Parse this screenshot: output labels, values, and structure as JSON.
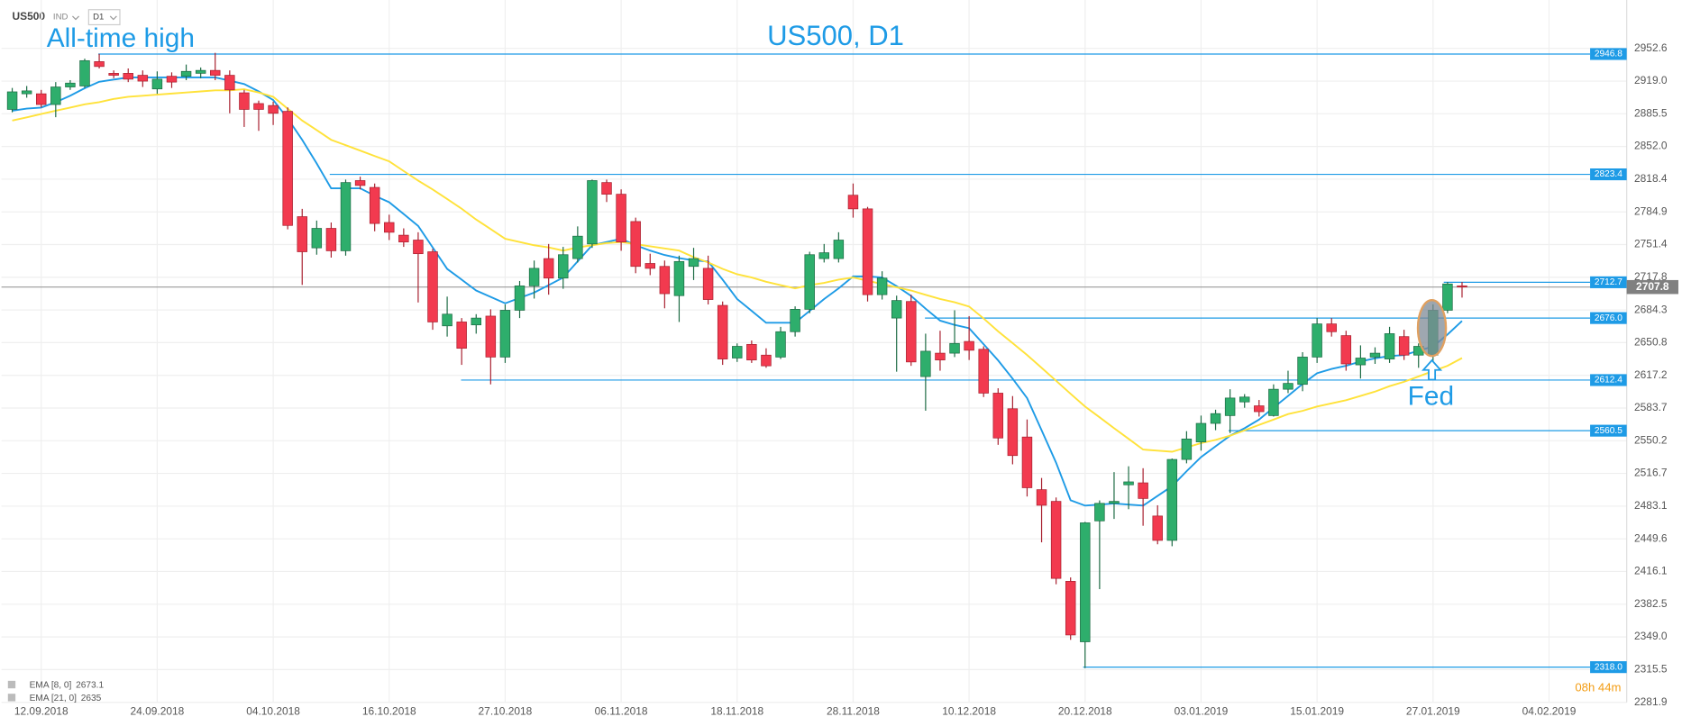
{
  "header": {
    "symbol": "US500",
    "market": "IND",
    "timeframe": "D1"
  },
  "chart_data": {
    "type": "candlestick",
    "title": "US500, D1",
    "categories": [
      null,
      null,
      "12.09.2018",
      null,
      null,
      null,
      null,
      null,
      null,
      null,
      "24.09.2018",
      null,
      null,
      null,
      null,
      null,
      null,
      null,
      "04.10.2018",
      null,
      null,
      null,
      null,
      null,
      null,
      null,
      "16.10.2018",
      null,
      null,
      null,
      null,
      null,
      null,
      null,
      "27.10.2018",
      null,
      null,
      null,
      null,
      null,
      null,
      null,
      "06.11.2018",
      null,
      null,
      null,
      null,
      null,
      null,
      null,
      "18.11.2018",
      null,
      null,
      null,
      null,
      null,
      null,
      null,
      "28.11.2018",
      null,
      null,
      null,
      null,
      null,
      null,
      null,
      "10.12.2018",
      null,
      null,
      null,
      null,
      null,
      null,
      null,
      "20.12.2018",
      null,
      null,
      null,
      null,
      null,
      null,
      null,
      "03.01.2019",
      null,
      null,
      null,
      null,
      null,
      null,
      null,
      "15.01.2019",
      null,
      null,
      null,
      null,
      null,
      null,
      null,
      "27.01.2019",
      null,
      null,
      null,
      null,
      null,
      null,
      null,
      "04.02.2019"
    ],
    "open": [
      2890,
      2906,
      2906,
      2895,
      2913,
      2914,
      2939,
      2927,
      2927,
      2925,
      2911,
      2924,
      2924,
      2927,
      2930,
      2925,
      2907,
      2896,
      2894,
      2888,
      2780,
      2748,
      2768,
      2745,
      2817,
      2810,
      2774,
      2761,
      2756,
      2744,
      2668,
      2672,
      2669,
      2678,
      2636,
      2684,
      2709,
      2737,
      2717,
      2737,
      2752,
      2815,
      2803,
      2775,
      2732,
      2729,
      2699,
      2729,
      2727,
      2689,
      2635,
      2649,
      2638,
      2636,
      2662,
      2685,
      2737,
      2737,
      2802,
      2788,
      2700,
      2676,
      2693,
      2616,
      2640,
      2640,
      2652,
      2644,
      2599,
      2583,
      2554,
      2500,
      2488,
      2406,
      2344,
      2468,
      2486,
      2505,
      2507,
      2473,
      2448,
      2531,
      2549,
      2568,
      2576,
      2590,
      2586,
      2576,
      2603,
      2608,
      2636,
      2670,
      2658,
      2628,
      2636,
      2634,
      2657,
      2638,
      2638,
      2684,
      2709,
      null,
      null,
      null,
      null,
      null,
      null
    ],
    "high": [
      2912,
      2914,
      2910,
      2918,
      2920,
      2942,
      2947,
      2930,
      2932,
      2930,
      2929,
      2928,
      2936,
      2933,
      2948,
      2930,
      2910,
      2899,
      2898,
      2892,
      2788,
      2776,
      2774,
      2818,
      2821,
      2814,
      2782,
      2768,
      2764,
      2747,
      2698,
      2676,
      2680,
      2685,
      2690,
      2714,
      2735,
      2752,
      2749,
      2770,
      2818,
      2818,
      2808,
      2779,
      2742,
      2735,
      2740,
      2748,
      2740,
      2693,
      2650,
      2653,
      2645,
      2667,
      2688,
      2744,
      2752,
      2764,
      2814,
      2790,
      2724,
      2699,
      2700,
      2660,
      2663,
      2684,
      2678,
      2647,
      2604,
      2596,
      2572,
      2512,
      2492,
      2410,
      2467,
      2489,
      2518,
      2524,
      2522,
      2484,
      2532,
      2560,
      2576,
      2582,
      2603,
      2598,
      2592,
      2608,
      2622,
      2641,
      2676,
      2676,
      2663,
      2648,
      2646,
      2667,
      2664,
      2650,
      2690,
      2713,
      2713,
      null,
      null,
      null,
      null,
      null,
      null
    ],
    "low": [
      2887,
      2902,
      2892,
      2882,
      2910,
      2912,
      2932,
      2922,
      2918,
      2913,
      2906,
      2912,
      2920,
      2922,
      2920,
      2886,
      2872,
      2868,
      2874,
      2767,
      2710,
      2741,
      2738,
      2740,
      2808,
      2765,
      2756,
      2749,
      2692,
      2664,
      2657,
      2628,
      2660,
      2608,
      2630,
      2676,
      2696,
      2700,
      2706,
      2733,
      2748,
      2795,
      2745,
      2722,
      2720,
      2686,
      2672,
      2715,
      2690,
      2628,
      2631,
      2630,
      2625,
      2634,
      2657,
      2681,
      2733,
      2733,
      2779,
      2693,
      2695,
      2621,
      2627,
      2581,
      2622,
      2636,
      2633,
      2595,
      2546,
      2526,
      2493,
      2446,
      2403,
      2346,
      2317,
      2398,
      2470,
      2480,
      2463,
      2444,
      2442,
      2527,
      2540,
      2561,
      2558,
      2584,
      2575,
      2575,
      2599,
      2601,
      2630,
      2657,
      2622,
      2614,
      2629,
      2630,
      2633,
      2625,
      2631,
      2681,
      2697,
      null,
      null,
      null,
      null,
      null,
      null
    ],
    "close": [
      2908,
      2909,
      2895,
      2913,
      2917,
      2940,
      2934,
      2925,
      2921,
      2919,
      2921,
      2918,
      2929,
      2930,
      2925,
      2910,
      2890,
      2890,
      2886,
      2771,
      2744,
      2768,
      2745,
      2815,
      2812,
      2773,
      2764,
      2754,
      2742,
      2672,
      2680,
      2645,
      2676,
      2636,
      2684,
      2709,
      2727,
      2717,
      2741,
      2760,
      2817,
      2803,
      2754,
      2729,
      2727,
      2701,
      2734,
      2737,
      2695,
      2634,
      2647,
      2633,
      2627,
      2662,
      2685,
      2741,
      2743,
      2756,
      2788,
      2700,
      2717,
      2694,
      2631,
      2642,
      2633,
      2650,
      2643,
      2599,
      2553,
      2535,
      2502,
      2484,
      2409,
      2351,
      2466,
      2486,
      2488,
      2508,
      2491,
      2448,
      2531,
      2552,
      2568,
      2578,
      2594,
      2595,
      2580,
      2603,
      2609,
      2636,
      2670,
      2662,
      2629,
      2635,
      2640,
      2660,
      2638,
      2647,
      2684,
      2711,
      2707.8,
      null,
      null,
      null,
      null,
      null,
      null
    ],
    "up_color": "#2eae6c",
    "down_color": "#f23a4f",
    "series": [
      {
        "name": "EMA [8, 0]",
        "color": "#1e9be6",
        "values": [
          2888.6,
          2890.8,
          2891.9,
          2897.4,
          2904.0,
          2911.7,
          2918.4,
          2920.6,
          2922.8,
          2922.8,
          2922.8,
          2922.8,
          2922.8,
          2922.8,
          2922.8,
          2919.5,
          2916.1,
          2908.4,
          2899.6,
          2880.8,
          2858.8,
          2834.5,
          2809.1,
          2809.1,
          2809.1,
          2801.4,
          2794.8,
          2782.7,
          2770.5,
          2748.5,
          2726.4,
          2715.4,
          2704.3,
          2697.7,
          2691.1,
          2696.6,
          2702.1,
          2709.8,
          2717.6,
          2734.1,
          2750.7,
          2754.0,
          2757.3,
          2750.7,
          2745.2,
          2740.7,
          2737.5,
          2735.2,
          2734.1,
          2715.4,
          2695.5,
          2683.4,
          2671.2,
          2671.2,
          2671.2,
          2683.4,
          2695.5,
          2706.5,
          2718.7,
          2718.7,
          2717.6,
          2708.7,
          2698.8,
          2685.6,
          2673.4,
          2669.0,
          2665.7,
          2649.2,
          2632.6,
          2613.9,
          2594.0,
          2560.9,
          2527.8,
          2489.2,
          2483.7,
          2484.8,
          2485.9,
          2484.8,
          2483.7,
          2493.6,
          2503.6,
          2519.0,
          2533.4,
          2544.4,
          2555.4,
          2563.1,
          2571.9,
          2584.1,
          2596.2,
          2608.4,
          2619.4,
          2623.8,
          2627.1,
          2631.5,
          2634.8,
          2637.0,
          2638.1,
          2642.5,
          2646.9,
          2659.1,
          2673.1,
          null,
          null,
          null,
          null,
          null,
          null
        ]
      },
      {
        "name": "EMA [21, 0]",
        "color": "#ffe23a",
        "values": [
          2878.6,
          2881.9,
          2885.3,
          2888.6,
          2891.9,
          2895.2,
          2897.4,
          2900.7,
          2902.9,
          2904.0,
          2905.1,
          2906.2,
          2907.3,
          2908.4,
          2909.5,
          2909.5,
          2910.6,
          2907.3,
          2902.9,
          2890.8,
          2878.6,
          2868.7,
          2858.8,
          2853.3,
          2847.8,
          2842.2,
          2836.7,
          2826.8,
          2816.9,
          2808.0,
          2798.1,
          2788.1,
          2777.1,
          2767.2,
          2757.3,
          2754.0,
          2750.7,
          2748.5,
          2745.2,
          2748.5,
          2750.7,
          2752.9,
          2754.0,
          2751.8,
          2749.6,
          2747.4,
          2745.2,
          2738.5,
          2733.0,
          2726.4,
          2720.9,
          2717.6,
          2713.2,
          2709.8,
          2706.5,
          2709.8,
          2712.1,
          2715.4,
          2717.6,
          2714.3,
          2710.9,
          2707.6,
          2704.3,
          2699.9,
          2695.5,
          2692.2,
          2687.8,
          2675.6,
          2662.4,
          2650.3,
          2638.1,
          2624.9,
          2611.7,
          2598.4,
          2585.2,
          2574.2,
          2563.1,
          2552.1,
          2541.1,
          2540.0,
          2538.9,
          2543.3,
          2547.7,
          2551.0,
          2555.4,
          2560.9,
          2566.4,
          2571.9,
          2577.5,
          2580.8,
          2585.2,
          2588.5,
          2591.8,
          2596.2,
          2600.6,
          2606.2,
          2610.6,
          2616.1,
          2621.6,
          2627.1,
          2635.0,
          null,
          null,
          null,
          null,
          null,
          null
        ]
      }
    ],
    "ylim": [
      2281.9,
      3002.2
    ],
    "yticks": [
      2952.6,
      {
        "value": 2919,
        "label": "2919.0"
      },
      2885.5,
      {
        "value": 2852,
        "label": "2852.0"
      },
      2818.4,
      2784.9,
      2751.4,
      2717.8,
      2684.3,
      2650.8,
      2617.2,
      2583.7,
      2550.2,
      2516.7,
      2483.1,
      2449.6,
      2416.1,
      2382.5,
      {
        "value": 2349,
        "label": "2349.0"
      },
      2315.5,
      2281.9
    ],
    "grid": true,
    "levels": [
      2946.8,
      2823.4,
      2712.7,
      {
        "value": 2676,
        "label": "2676.0"
      },
      2612.4,
      2560.5,
      {
        "value": 2318,
        "label": "2318.0"
      }
    ],
    "level_color": "#1e9be6",
    "last_price": 2707.8,
    "annotations": [
      "All-time high",
      "Fed"
    ]
  },
  "timer": "08h 44m"
}
